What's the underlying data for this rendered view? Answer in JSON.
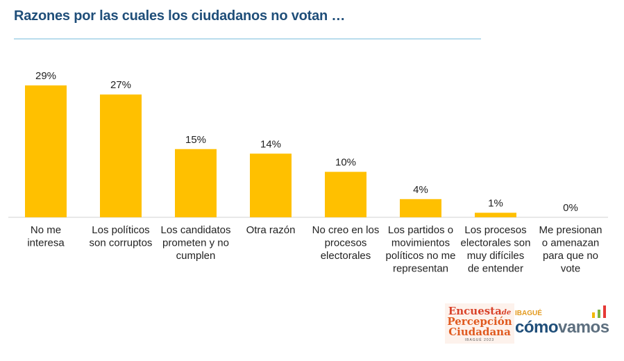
{
  "title": "Razones por las cuales los ciudadanos no votan …",
  "colors": {
    "bar": "#ffc000",
    "title": "#1f4e79",
    "rule": "#b9dcec",
    "axis": "#d0d0d0"
  },
  "chart_data": {
    "type": "bar",
    "title": "Razones por las cuales los ciudadanos no votan …",
    "xlabel": "",
    "ylabel": "",
    "ylim": [
      0,
      30
    ],
    "grid": false,
    "categories": [
      [
        "No me",
        "interesa"
      ],
      [
        "Los políticos",
        "son corruptos"
      ],
      [
        "Los candidatos",
        "prometen y no",
        "cumplen"
      ],
      [
        "Otra razón"
      ],
      [
        "No creo en los",
        "procesos",
        "electorales"
      ],
      [
        "Los partidos o",
        "movimientos",
        "políticos no me",
        "representan"
      ],
      [
        "Los procesos",
        "electorales son",
        "muy difíciles",
        "de entender"
      ],
      [
        "Me presionan",
        "o amenazan",
        "para que no",
        "vote"
      ]
    ],
    "values": [
      29,
      27,
      15,
      14,
      10,
      4,
      1,
      0
    ],
    "value_labels": [
      "29%",
      "27%",
      "15%",
      "14%",
      "10%",
      "4%",
      "1%",
      "0%"
    ]
  },
  "footer": {
    "encuesta_line1": "Encuesta",
    "encuesta_de": "de",
    "encuesta_line2": "Percepción",
    "encuesta_line3": "Ciudadana",
    "encuesta_line4": "IBAGUÉ 2023",
    "ibague": "IBAGUÉ",
    "como": "cómo",
    "vamos": "vamos",
    "logo_bar_colors": [
      "#f2b705",
      "#7cb342",
      "#e53935"
    ]
  }
}
